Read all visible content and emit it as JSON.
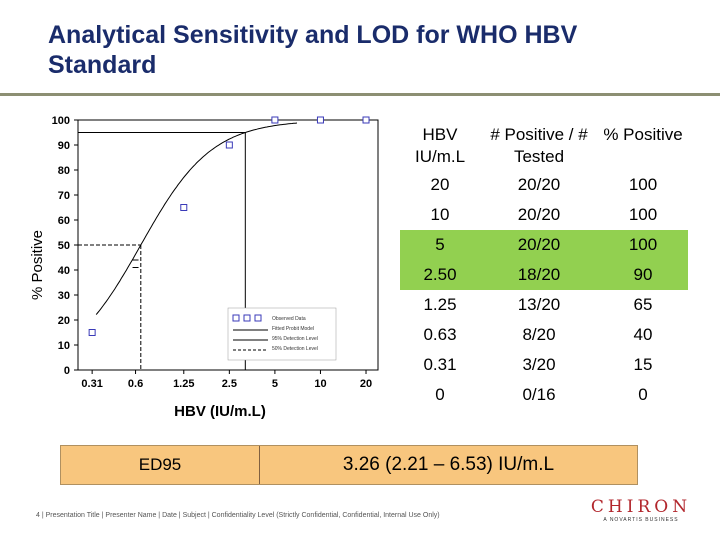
{
  "title": "Analytical Sensitivity and LOD for WHO HBV Standard",
  "chart_data": {
    "type": "scatter",
    "xlabel": "HBV (IU/m.L)",
    "ylabel": "% Positive",
    "x_tick_labels": [
      "0.31",
      "0.6",
      "1.25",
      "2.5",
      "5",
      "10",
      "20"
    ],
    "y_ticks": [
      0,
      10,
      20,
      30,
      40,
      50,
      60,
      70,
      80,
      90,
      100
    ],
    "ylim": [
      0,
      100
    ],
    "x_scale": "log",
    "observed_points": [
      {
        "x": 0.31,
        "y": 15
      },
      {
        "x": 1.25,
        "y": 65
      },
      {
        "x": 2.5,
        "y": 90
      },
      {
        "x": 5,
        "y": 100
      },
      {
        "x": 10,
        "y": 100
      },
      {
        "x": 20,
        "y": 100
      }
    ],
    "ed50_level": 50,
    "ed95_level": 95,
    "legend": {
      "position": "bottom-right",
      "entries": [
        "Observed Data",
        "Fitted Probit Model",
        "95% Detection Level",
        "50% Detection Level"
      ]
    },
    "fit_color": "#000000",
    "marker_color": "#3a3ab8"
  },
  "table": {
    "headers": [
      "HBV IU/m.L",
      "# Positive / # Tested",
      "% Positive"
    ],
    "rows": [
      {
        "hbv": "20",
        "ratio": "20/20",
        "pct": "100",
        "highlight": false
      },
      {
        "hbv": "10",
        "ratio": "20/20",
        "pct": "100",
        "highlight": false
      },
      {
        "hbv": "5",
        "ratio": "20/20",
        "pct": "100",
        "highlight": true
      },
      {
        "hbv": "2.50",
        "ratio": "18/20",
        "pct": "90",
        "highlight": true
      },
      {
        "hbv": "1.25",
        "ratio": "13/20",
        "pct": "65",
        "highlight": false
      },
      {
        "hbv": "0.63",
        "ratio": "8/20",
        "pct": "40",
        "highlight": false
      },
      {
        "hbv": "0.31",
        "ratio": "3/20",
        "pct": "15",
        "highlight": false
      },
      {
        "hbv": "0",
        "ratio": "0/16",
        "pct": "0",
        "highlight": false
      }
    ],
    "highlight_color": "#92d050"
  },
  "ed95": {
    "label": "ED95",
    "value": "3.26 (2.21 – 6.53) IU/m.L",
    "color": "#f8c67e"
  },
  "footer": "4 | Presentation Title | Presenter Name | Date | Subject | Confidentiality Level (Strictly Confidential, Confidential, Internal Use Only)",
  "logo": {
    "main": "CHIRON",
    "sub": "A NOVARTIS BUSINESS",
    "color": "#b2262c"
  }
}
